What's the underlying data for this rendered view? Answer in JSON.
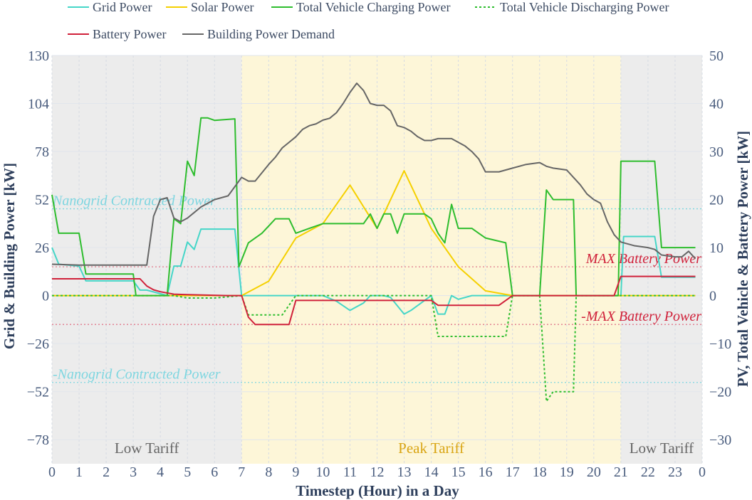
{
  "chart_data": {
    "type": "line",
    "title": "",
    "xlabel": "Timestep (Hour) in a Day",
    "ylabel_left": "Grid & Building Power [kW]",
    "ylabel_right": "PV, Total Vehicle & Battery Power [kW]",
    "xlim": [
      0,
      24
    ],
    "ylim_left": [
      -91,
      130
    ],
    "ylim_right": [
      -35,
      50
    ],
    "x_ticks": [
      0,
      1,
      2,
      3,
      4,
      5,
      6,
      7,
      8,
      9,
      10,
      11,
      12,
      13,
      14,
      15,
      16,
      17,
      18,
      19,
      20,
      21,
      22,
      23,
      24
    ],
    "x_tick_labels": [
      "0",
      "1",
      "2",
      "3",
      "4",
      "5",
      "6",
      "7",
      "8",
      "9",
      "10",
      "11",
      "12",
      "13",
      "14",
      "15",
      "16",
      "17",
      "18",
      "19",
      "20",
      "21",
      "22",
      "23",
      "0"
    ],
    "y_ticks_left": [
      130,
      104,
      78,
      52,
      26,
      0,
      -26,
      -52,
      -78
    ],
    "y_tick_labels_left": [
      "130",
      "104",
      "78",
      "52",
      "26",
      "0",
      "−26",
      "−52",
      "−78"
    ],
    "y_ticks_right": [
      50,
      40,
      30,
      20,
      10,
      0,
      -10,
      -20,
      -30
    ],
    "y_tick_labels_right": [
      "50",
      "40",
      "30",
      "20",
      "10",
      "0",
      "−10",
      "−20",
      "−30"
    ],
    "grid": true,
    "legend_position": "top",
    "colors": {
      "grid": "#45d6c8",
      "solar": "#f5d000",
      "charging": "#2ebd2e",
      "discharging": "#2ebd2e",
      "battery": "#d0213a",
      "building": "#666666",
      "low_band": "#ececec",
      "peak_band": "#fdf6d8",
      "nanogrid_line": "#7ed6e0",
      "battery_limit_line": "#e07a8c"
    },
    "bands": [
      {
        "label": "Low Tariff",
        "x0": 0,
        "x1": 7,
        "color": "#ececec",
        "text_color": "#666666"
      },
      {
        "label": "Peak Tariff",
        "x0": 7,
        "x1": 21,
        "color": "#fdf6d8",
        "text_color": "#d9a514"
      },
      {
        "label": "Low Tariff",
        "x0": 21,
        "x1": 24,
        "color": "#ececec",
        "text_color": "#666666"
      }
    ],
    "reference_lines": [
      {
        "label": "Nanogrid Contracted Power",
        "axis": "left",
        "y": 47,
        "color": "#7ed6e0",
        "text_color": "#7ed6e0"
      },
      {
        "label": "-Nanogrid Contracted Power",
        "axis": "left",
        "y": -47,
        "color": "#7ed6e0",
        "text_color": "#7ed6e0"
      },
      {
        "label": "MAX Battery Power",
        "axis": "right",
        "y": 6,
        "color": "#e07a8c",
        "text_color": "#d0213a"
      },
      {
        "label": "-MAX Battery Power",
        "axis": "right",
        "y": -6,
        "color": "#e07a8c",
        "text_color": "#d0213a"
      }
    ],
    "series": [
      {
        "name": "Grid Power",
        "key": "grid",
        "axis": "left",
        "dash": "solid",
        "points": [
          [
            0,
            26
          ],
          [
            0.25,
            17
          ],
          [
            1,
            16
          ],
          [
            1.25,
            8
          ],
          [
            3,
            8
          ],
          [
            3.25,
            3
          ],
          [
            3.5,
            3
          ],
          [
            4,
            1
          ],
          [
            4.25,
            0
          ],
          [
            4.5,
            16
          ],
          [
            4.75,
            16
          ],
          [
            5,
            29
          ],
          [
            5.25,
            25
          ],
          [
            5.5,
            36
          ],
          [
            6,
            36
          ],
          [
            6.5,
            36
          ],
          [
            6.75,
            36
          ],
          [
            7,
            0
          ],
          [
            10,
            0
          ],
          [
            10.5,
            -3
          ],
          [
            11,
            -8
          ],
          [
            11.5,
            -4
          ],
          [
            11.75,
            0
          ],
          [
            12.25,
            0
          ],
          [
            12.5,
            -1
          ],
          [
            13,
            -10
          ],
          [
            13.25,
            -8
          ],
          [
            14,
            0
          ],
          [
            14.25,
            -10
          ],
          [
            14.5,
            -10
          ],
          [
            14.75,
            0
          ],
          [
            15,
            -2
          ],
          [
            15.5,
            0
          ],
          [
            17,
            0
          ],
          [
            18,
            0
          ],
          [
            21,
            0
          ],
          [
            21.1,
            32
          ],
          [
            22,
            32
          ],
          [
            22.25,
            32
          ],
          [
            22.5,
            10
          ],
          [
            23.75,
            10
          ]
        ]
      },
      {
        "name": "Solar Power",
        "key": "solar",
        "axis": "right",
        "dash": "solid",
        "points": [
          [
            0,
            0
          ],
          [
            7,
            0
          ],
          [
            8,
            3
          ],
          [
            9,
            12
          ],
          [
            10,
            15
          ],
          [
            11,
            23
          ],
          [
            12,
            14
          ],
          [
            13,
            26
          ],
          [
            14,
            14
          ],
          [
            15,
            6
          ],
          [
            16,
            1
          ],
          [
            17,
            0
          ],
          [
            23.75,
            0
          ]
        ]
      },
      {
        "name": "Total Vehicle Charging Power",
        "key": "charging",
        "axis": "right",
        "dash": "solid",
        "points": [
          [
            0,
            21
          ],
          [
            0.25,
            13
          ],
          [
            1,
            13
          ],
          [
            1.25,
            4.5
          ],
          [
            2.75,
            4.5
          ],
          [
            3,
            4.5
          ],
          [
            3.1,
            0
          ],
          [
            4.25,
            0
          ],
          [
            4.5,
            16
          ],
          [
            4.75,
            15
          ],
          [
            5,
            28
          ],
          [
            5.25,
            25
          ],
          [
            5.5,
            37
          ],
          [
            5.75,
            37
          ],
          [
            6,
            36.5
          ],
          [
            6.75,
            36.8
          ],
          [
            6.9,
            6
          ],
          [
            7.25,
            11
          ],
          [
            7.75,
            13
          ],
          [
            8.25,
            16
          ],
          [
            8.5,
            16
          ],
          [
            8.75,
            16
          ],
          [
            9,
            13
          ],
          [
            9.5,
            14
          ],
          [
            10,
            15
          ],
          [
            10.75,
            15
          ],
          [
            11.5,
            15
          ],
          [
            11.75,
            17
          ],
          [
            12,
            14
          ],
          [
            12.25,
            17
          ],
          [
            12.5,
            17
          ],
          [
            12.75,
            13
          ],
          [
            13,
            17
          ],
          [
            13.75,
            17
          ],
          [
            14,
            16
          ],
          [
            14.25,
            13
          ],
          [
            14.5,
            11
          ],
          [
            14.75,
            19
          ],
          [
            15,
            14
          ],
          [
            15.5,
            14
          ],
          [
            15.75,
            13
          ],
          [
            16,
            12
          ],
          [
            16.75,
            11
          ],
          [
            17,
            0
          ],
          [
            18,
            0
          ],
          [
            18.25,
            22
          ],
          [
            18.5,
            20
          ],
          [
            19.25,
            20
          ],
          [
            19.35,
            0
          ],
          [
            20.9,
            0
          ],
          [
            21,
            28
          ],
          [
            22,
            28
          ],
          [
            22.25,
            28
          ],
          [
            22.5,
            10
          ],
          [
            23.75,
            10
          ]
        ]
      },
      {
        "name": "Total Vehicle Discharging Power",
        "key": "discharging",
        "axis": "right",
        "dash": "dotted",
        "points": [
          [
            0,
            0
          ],
          [
            4.5,
            0
          ],
          [
            5,
            -0.5
          ],
          [
            6,
            -0.5
          ],
          [
            7,
            0
          ],
          [
            7.25,
            -4
          ],
          [
            8,
            -4
          ],
          [
            8.5,
            -4
          ],
          [
            9,
            0
          ],
          [
            14,
            0
          ],
          [
            14.25,
            -8.5
          ],
          [
            15,
            -8.5
          ],
          [
            16.75,
            -8.5
          ],
          [
            17,
            0
          ],
          [
            18,
            0
          ],
          [
            18.25,
            -22
          ],
          [
            18.5,
            -20
          ],
          [
            19.25,
            -20
          ],
          [
            19.35,
            0
          ],
          [
            21,
            0
          ],
          [
            23.75,
            0
          ]
        ]
      },
      {
        "name": "Battery Power",
        "key": "battery",
        "axis": "right",
        "dash": "solid",
        "points": [
          [
            0,
            3.5
          ],
          [
            1,
            3.5
          ],
          [
            3.25,
            3.5
          ],
          [
            3.5,
            2
          ],
          [
            3.75,
            1.2
          ],
          [
            4,
            0.8
          ],
          [
            4.5,
            0.3
          ],
          [
            5,
            0.2
          ],
          [
            6.5,
            0
          ],
          [
            7,
            0
          ],
          [
            7.25,
            -4.5
          ],
          [
            7.5,
            -6
          ],
          [
            8.75,
            -6
          ],
          [
            9,
            -1
          ],
          [
            10,
            -1
          ],
          [
            11,
            -1
          ],
          [
            12,
            -1
          ],
          [
            13,
            -1
          ],
          [
            14,
            -1
          ],
          [
            14.25,
            -2
          ],
          [
            16.5,
            -2
          ],
          [
            16.75,
            -1
          ],
          [
            17,
            0
          ],
          [
            20.75,
            0
          ],
          [
            21,
            4
          ],
          [
            23.75,
            4
          ]
        ]
      },
      {
        "name": "Building Power Demand",
        "key": "building",
        "axis": "left",
        "dash": "solid",
        "points": [
          [
            0,
            17
          ],
          [
            1,
            16.5
          ],
          [
            2,
            16.5
          ],
          [
            3,
            16.5
          ],
          [
            3.5,
            16.5
          ],
          [
            3.75,
            43
          ],
          [
            4,
            52
          ],
          [
            4.25,
            53
          ],
          [
            4.5,
            42
          ],
          [
            4.75,
            40
          ],
          [
            5,
            42
          ],
          [
            5.25,
            45
          ],
          [
            5.5,
            48
          ],
          [
            5.75,
            50
          ],
          [
            6,
            52
          ],
          [
            6.5,
            54
          ],
          [
            7,
            64
          ],
          [
            7.25,
            62
          ],
          [
            7.5,
            62
          ],
          [
            8,
            71
          ],
          [
            8.25,
            75
          ],
          [
            8.5,
            80
          ],
          [
            8.75,
            83
          ],
          [
            9,
            86
          ],
          [
            9.25,
            90
          ],
          [
            9.5,
            92
          ],
          [
            9.75,
            93
          ],
          [
            10,
            95
          ],
          [
            10.25,
            96
          ],
          [
            10.5,
            99
          ],
          [
            10.75,
            104
          ],
          [
            11,
            110
          ],
          [
            11.25,
            115
          ],
          [
            11.5,
            111
          ],
          [
            11.75,
            104
          ],
          [
            12,
            103
          ],
          [
            12.25,
            103
          ],
          [
            12.5,
            100
          ],
          [
            12.75,
            92
          ],
          [
            13,
            91
          ],
          [
            13.25,
            89
          ],
          [
            13.5,
            86
          ],
          [
            13.75,
            84
          ],
          [
            14,
            84
          ],
          [
            14.25,
            85
          ],
          [
            14.75,
            85
          ],
          [
            15,
            83
          ],
          [
            15.25,
            81
          ],
          [
            15.5,
            78
          ],
          [
            15.75,
            74
          ],
          [
            16,
            67
          ],
          [
            16.5,
            67
          ],
          [
            17,
            69
          ],
          [
            17.5,
            71
          ],
          [
            18,
            72
          ],
          [
            18.25,
            70
          ],
          [
            18.5,
            69
          ],
          [
            19,
            68
          ],
          [
            19.25,
            64
          ],
          [
            19.5,
            60
          ],
          [
            19.75,
            55
          ],
          [
            20,
            52
          ],
          [
            20.25,
            50
          ],
          [
            20.5,
            40
          ],
          [
            20.75,
            33
          ],
          [
            21,
            29
          ],
          [
            21.5,
            27
          ],
          [
            22,
            26
          ],
          [
            22.25,
            25
          ],
          [
            22.5,
            22
          ],
          [
            23,
            21
          ],
          [
            23.25,
            21
          ],
          [
            23.5,
            24
          ],
          [
            23.75,
            20
          ]
        ]
      }
    ],
    "legend": [
      {
        "key": "grid",
        "label": "Grid Power",
        "dash": "solid"
      },
      {
        "key": "solar",
        "label": "Solar Power",
        "dash": "solid"
      },
      {
        "key": "charging",
        "label": "Total Vehicle Charging Power",
        "dash": "solid"
      },
      {
        "key": "discharging",
        "label": "Total Vehicle Discharging Power",
        "dash": "dotted"
      },
      {
        "key": "battery",
        "label": "Battery Power",
        "dash": "solid"
      },
      {
        "key": "building",
        "label": "Building Power Demand",
        "dash": "solid"
      }
    ]
  }
}
